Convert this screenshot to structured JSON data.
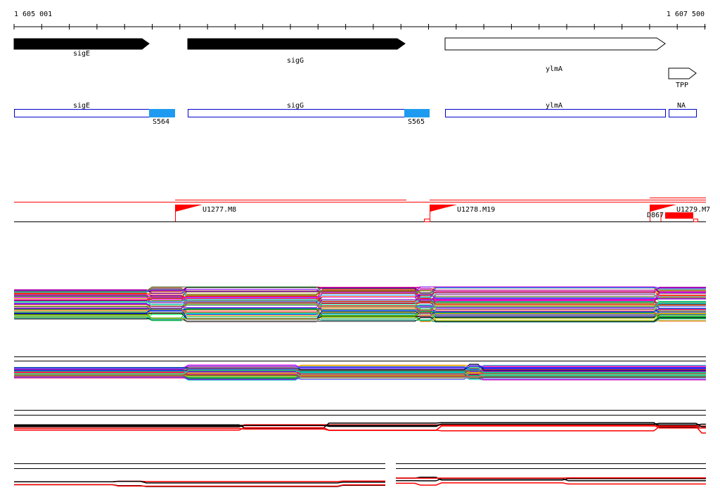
{
  "ruler": {
    "start_label": "1 605 001",
    "end_label": "1 607 500",
    "start": 1605001,
    "end": 1607500,
    "tick_step": 100
  },
  "genes": [
    {
      "name": "sigE",
      "start": 1605001,
      "end": 1605490,
      "strand": "+",
      "style": "filled"
    },
    {
      "name": "sigG",
      "start": 1605630,
      "end": 1606410,
      "strand": "+",
      "style": "filled"
    },
    {
      "name": "ylmA",
      "start": 1606560,
      "end": 1607360,
      "strand": "+",
      "style": "outline"
    },
    {
      "name": "TPP",
      "start": 1607370,
      "end": 1607470,
      "strand": "+",
      "style": "outline"
    }
  ],
  "segments": [
    {
      "label": "sigE",
      "start": 1605001,
      "end": 1605490
    },
    {
      "label": "sigG",
      "start": 1605630,
      "end": 1606410
    },
    {
      "label": "ylmA",
      "start": 1606560,
      "end": 1607360
    },
    {
      "label": "NA",
      "start": 1607370,
      "end": 1607470
    }
  ],
  "intergenic": [
    {
      "label": "S564",
      "start": 1605490,
      "end": 1605584
    },
    {
      "label": "S565",
      "start": 1606410,
      "end": 1606500
    }
  ],
  "transcripts": [
    {
      "label": "U1277.M8",
      "start": 1605600
    },
    {
      "label": "U1278.M19",
      "start": 1606520
    },
    {
      "label": "U1279.M7",
      "start": 1607320
    }
  ],
  "other_labels": {
    "d867": "D867"
  },
  "colors": {
    "segment_border": "#0000cc",
    "intergenic_fill": "#1e9bf0",
    "transcript": "#ff0000",
    "track_line": "#000000"
  }
}
